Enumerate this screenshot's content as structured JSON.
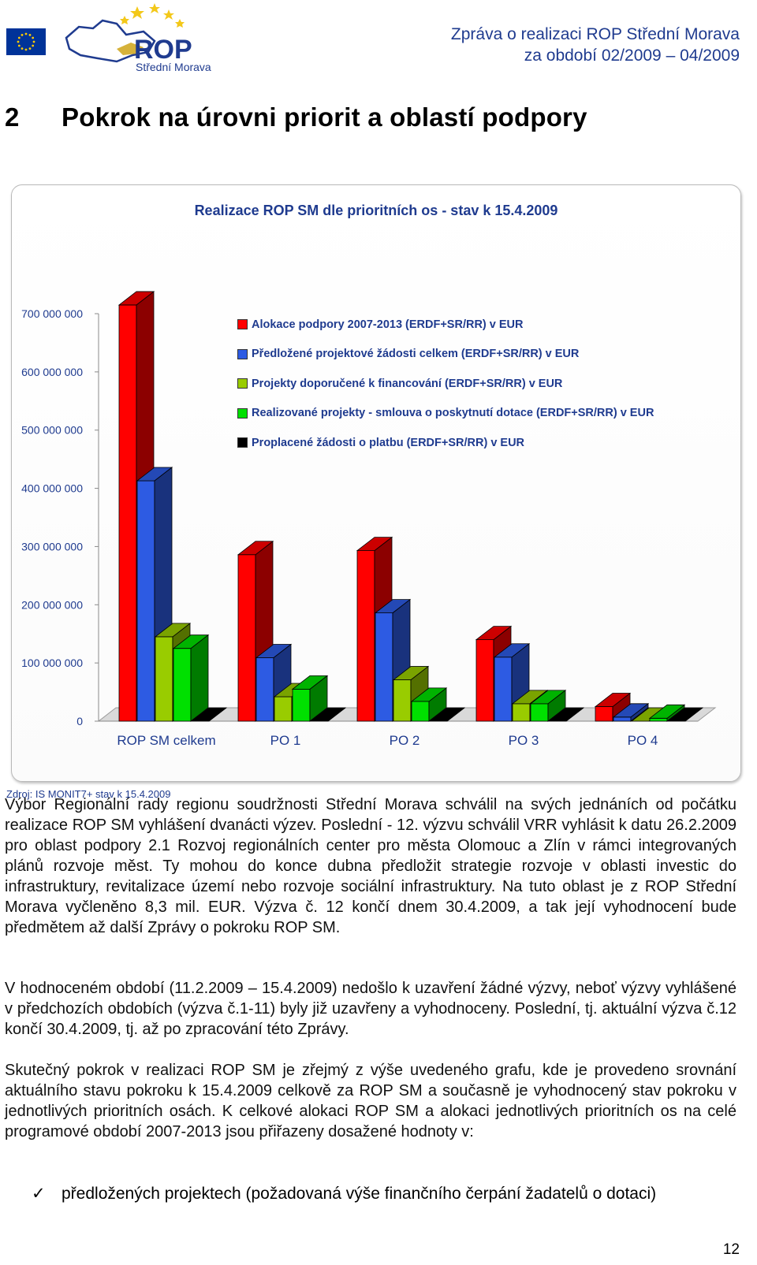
{
  "header": {
    "logo_text": "ROP",
    "logo_subtitle": "Střední Morava",
    "report_title_line1": "Zpráva o realizaci ROP Střední Morava",
    "report_title_line2": "za období 02/2009 – 04/2009"
  },
  "section": {
    "number": "2",
    "title": "Pokrok na úrovni priorit a oblastí podpory"
  },
  "chart_data": {
    "type": "bar",
    "style": "3d-clustered",
    "title": "Realizace ROP SM dle prioritních os - stav k 15.4.2009",
    "categories": [
      "ROP SM celkem",
      "PO 1",
      "PO 2",
      "PO 3",
      "PO 4"
    ],
    "yticks": [
      "0",
      "100 000 000",
      "200 000 000",
      "300 000 000",
      "400 000 000",
      "500 000 000",
      "600 000 000",
      "700 000 000"
    ],
    "ylim": [
      0,
      700000000
    ],
    "legend_position": "upper-right inside plot",
    "series": [
      {
        "name": "Alokace podpory 2007-2013 (ERDF+SR/RR) v EUR",
        "color": "#ff0000",
        "values": [
          715000000,
          286000000,
          293000000,
          140000000,
          25000000
        ]
      },
      {
        "name": "Předložené projektové žádosti celkem  (ERDF+SR/RR) v EUR",
        "color": "#2d5be3",
        "values": [
          413000000,
          109000000,
          186000000,
          110000000,
          7000000
        ]
      },
      {
        "name": "Projekty doporučené k financování (ERDF+SR/RR) v EUR",
        "color": "#99cc00",
        "values": [
          145000000,
          42000000,
          71000000,
          30000000,
          0
        ]
      },
      {
        "name": "Realizované projekty - smlouva o poskytnutí dotace (ERDF+SR/RR) v EUR",
        "color": "#00e000",
        "values": [
          125000000,
          55000000,
          34000000,
          30000000,
          5000000
        ]
      },
      {
        "name": "Proplacené žádosti o platbu (ERDF+SR/RR)  v EUR",
        "color": "#000000",
        "values": [
          0,
          0,
          0,
          0,
          0
        ]
      }
    ]
  },
  "source_note": "Zdroj: IS MONIT7+ stav k 15.4.2009",
  "paragraphs": {
    "p1": "Výbor Regionální rady regionu soudržnosti Střední Morava schválil na svých jednáních od počátku realizace ROP SM vyhlášení dvanácti výzev. Poslední - 12. výzvu schválil VRR vyhlásit k datu 26.2.2009 pro oblast podpory 2.1 Rozvoj regionálních center pro města Olomouc a Zlín v rámci integrovaných plánů rozvoje měst. Ty mohou do konce dubna předložit strategie rozvoje v oblasti investic do infrastruktury, revitalizace území nebo rozvoje sociální infrastruktury. Na tuto oblast je z ROP Střední Morava vyčleněno 8,3 mil. EUR. Výzva č. 12 končí dnem 30.4.2009, a tak její vyhodnocení bude předmětem až další Zprávy o pokroku ROP SM.",
    "p2": "V hodnoceném období (11.2.2009 – 15.4.2009) nedošlo k uzavření žádné výzvy, neboť výzvy vyhlášené v předchozích obdobích (výzva č.1-11) byly již uzavřeny a vyhodnoceny. Poslední, tj. aktuální výzva č.12 končí 30.4.2009, tj. až po zpracování této Zprávy.",
    "p3": "Skutečný pokrok v realizaci ROP SM je zřejmý z výše uvedeného grafu, kde je provedeno srovnání aktuálního stavu pokroku k 15.4.2009 celkově za ROP SM a současně je vyhodnocený stav pokroku v jednotlivých prioritních osách. K celkové alokaci ROP SM a alokaci jednotlivých prioritních os na celé programové období 2007-2013 jsou přiřazeny dosažené hodnoty v:"
  },
  "bullets": [
    "předložených projektech (požadovaná výše finančního čerpání žadatelů o dotaci)"
  ],
  "bullet_mark": "✓",
  "page_number": "12"
}
